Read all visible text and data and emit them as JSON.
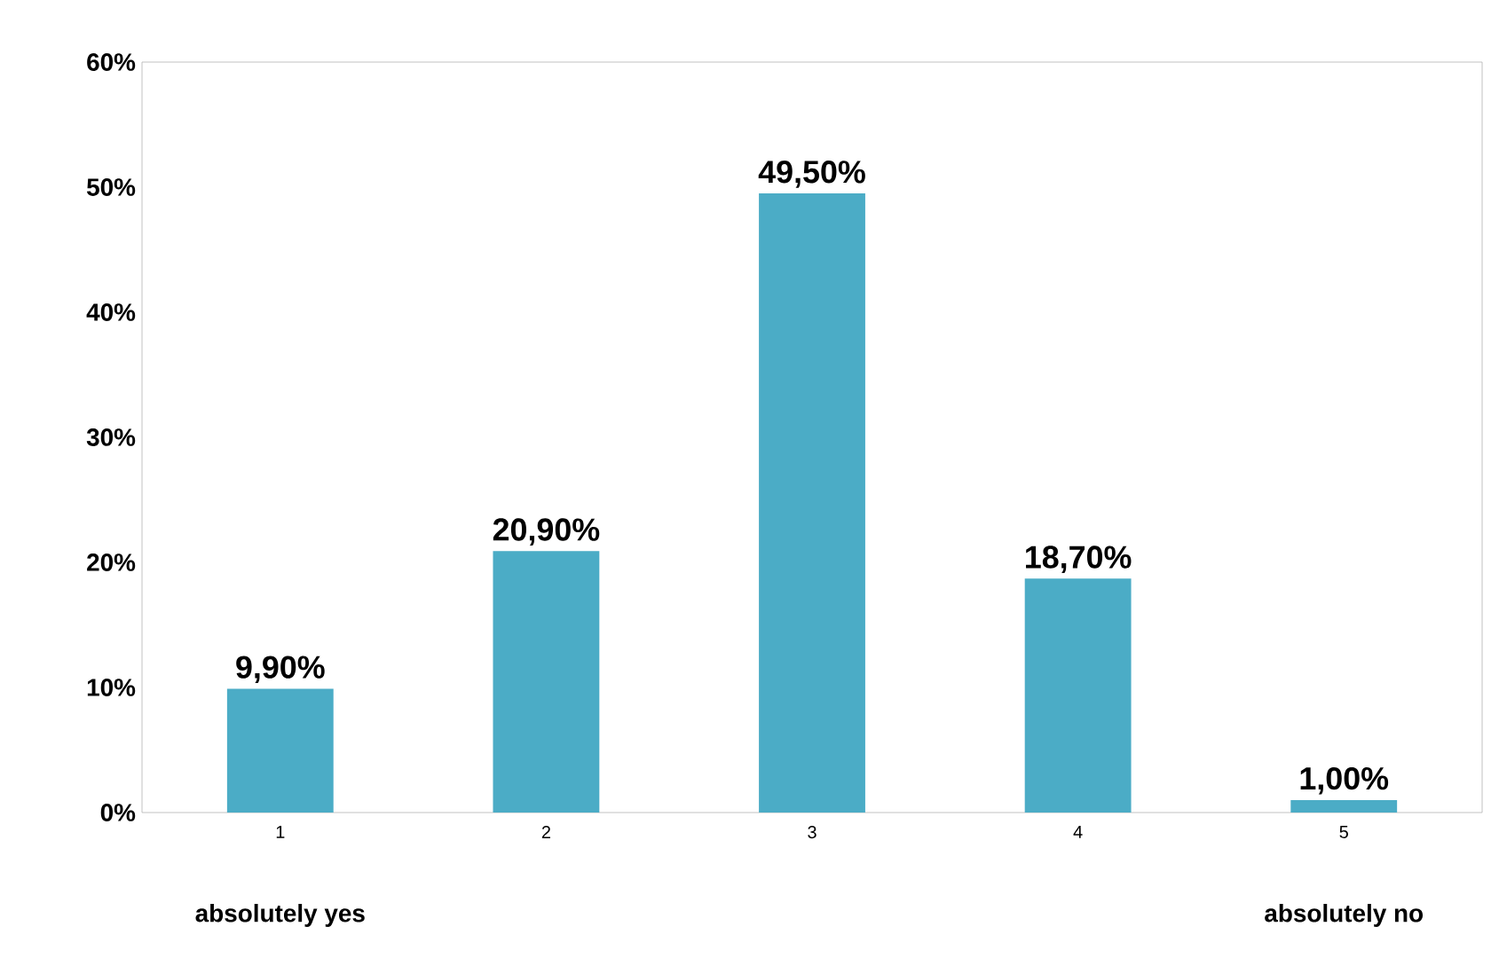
{
  "chart_data": {
    "type": "bar",
    "categories": [
      "1",
      "2",
      "3",
      "4",
      "5"
    ],
    "values": [
      9.9,
      20.9,
      49.5,
      18.7,
      1.0
    ],
    "value_labels": [
      "9,90%",
      "20,90%",
      "49,50%",
      "18,70%",
      "1,00%"
    ],
    "color": "#4bacc6",
    "ylim": [
      0,
      60
    ],
    "yticks": [
      {
        "value": 0,
        "label": "0%"
      },
      {
        "value": 10,
        "label": "10%"
      },
      {
        "value": 20,
        "label": "20%"
      },
      {
        "value": 30,
        "label": "30%"
      },
      {
        "value": 40,
        "label": "40%"
      },
      {
        "value": 50,
        "label": "50%"
      },
      {
        "value": 60,
        "label": "60%"
      }
    ],
    "grid": false,
    "annotations": [
      "absolutely yes",
      "absolutely no"
    ]
  }
}
